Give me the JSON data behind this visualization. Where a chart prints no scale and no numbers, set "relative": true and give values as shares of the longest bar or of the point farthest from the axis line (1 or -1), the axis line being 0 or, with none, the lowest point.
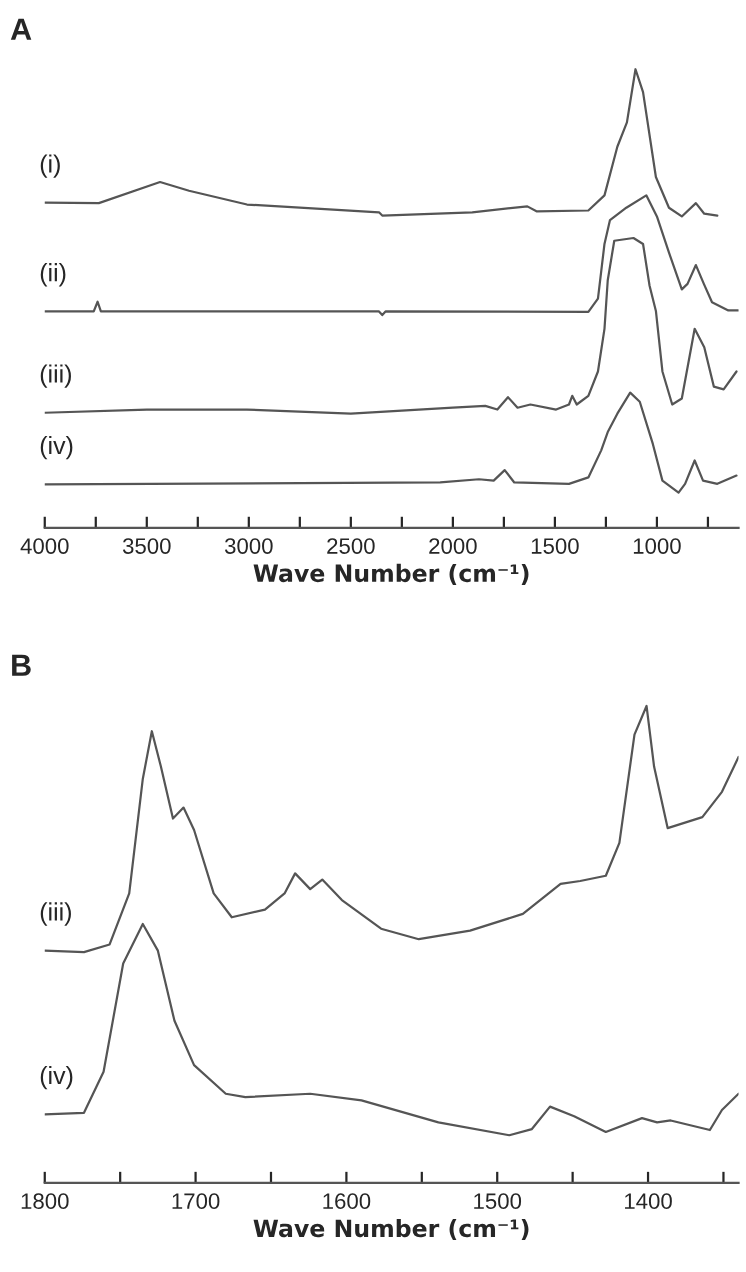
{
  "chart_data": [
    {
      "type": "line",
      "title": "A",
      "xlabel": "Wave Number (cm⁻¹)",
      "relative": true,
      "tick_labels": "x",
      "xlim": [
        4000,
        600
      ],
      "xticks": [
        4000,
        {
          "value": 3750,
          "label": null
        },
        3500,
        {
          "value": 3250,
          "label": null
        },
        3000,
        {
          "value": 2750,
          "label": null
        },
        2500,
        {
          "value": 2250,
          "label": null
        },
        2000,
        {
          "value": 1750,
          "label": null
        },
        1500,
        {
          "value": 1250,
          "label": null
        },
        1000,
        {
          "value": 750,
          "label": null
        }
      ],
      "series": [
        {
          "name": "(i)",
          "color": "#555555",
          "x": [
            4000,
            3735,
            3435,
            3293,
            3009,
            2362,
            2346,
            1905,
            1635,
            1588,
            1336,
            1257,
            1194,
            1147,
            1105,
            1068,
            1005,
            941,
            878,
            809,
            768,
            704
          ],
          "values": [
            0.709,
            0.708,
            0.754,
            0.735,
            0.705,
            0.688,
            0.681,
            0.688,
            0.701,
            0.69,
            0.692,
            0.725,
            0.831,
            0.884,
            1.0,
            0.95,
            0.765,
            0.698,
            0.679,
            0.708,
            0.685,
            0.681
          ]
        },
        {
          "name": "(ii)",
          "color": "#555555",
          "x": [
            4000,
            3760,
            3741,
            3725,
            2362,
            2346,
            2330,
            1336,
            1289,
            1257,
            1230,
            1150,
            1052,
            1000,
            940,
            878,
            850,
            809,
            770,
            730,
            650,
            600
          ],
          "values": [
            0.472,
            0.472,
            0.493,
            0.472,
            0.472,
            0.464,
            0.472,
            0.471,
            0.5,
            0.619,
            0.671,
            0.698,
            0.725,
            0.679,
            0.599,
            0.52,
            0.532,
            0.573,
            0.532,
            0.492,
            0.474,
            0.474
          ]
        },
        {
          "name": "(iii)",
          "color": "#555555",
          "x": [
            4000,
            3500,
            3009,
            2500,
            2000,
            1841,
            1782,
            1730,
            1683,
            1620,
            1494,
            1431,
            1415,
            1393,
            1336,
            1289,
            1257,
            1241,
            1209,
            1115,
            1068,
            1036,
            1005,
            973,
            925,
            878,
            815,
            768,
            721,
            673,
            610
          ],
          "values": [
            0.251,
            0.258,
            0.258,
            0.249,
            0.262,
            0.266,
            0.258,
            0.285,
            0.262,
            0.269,
            0.258,
            0.269,
            0.288,
            0.269,
            0.288,
            0.341,
            0.434,
            0.54,
            0.626,
            0.632,
            0.619,
            0.528,
            0.473,
            0.341,
            0.269,
            0.282,
            0.434,
            0.394,
            0.308,
            0.302,
            0.341
          ]
        },
        {
          "name": "(iv)",
          "color": "#555555",
          "x": [
            4000,
            2062,
            1872,
            1800,
            1746,
            1699,
            1431,
            1336,
            1273,
            1241,
            1194,
            1131,
            1084,
            1020,
            973,
            894,
            862,
            815,
            774,
            704,
            610
          ],
          "values": [
            0.095,
            0.099,
            0.106,
            0.103,
            0.126,
            0.099,
            0.096,
            0.11,
            0.169,
            0.209,
            0.249,
            0.295,
            0.275,
            0.183,
            0.103,
            0.077,
            0.096,
            0.147,
            0.103,
            0.096,
            0.114
          ]
        }
      ]
    },
    {
      "type": "line",
      "title": "B",
      "xlabel": "Wave Number (cm⁻¹)",
      "relative": true,
      "tick_labels": "x",
      "xlim": [
        1800,
        1340
      ],
      "xticks": [
        1800,
        {
          "value": 1750,
          "label": null
        },
        1700,
        {
          "value": 1650,
          "label": null
        },
        1600,
        {
          "value": 1550,
          "label": null
        },
        1500,
        {
          "value": 1450,
          "label": null
        },
        1400,
        {
          "value": 1350,
          "label": null
        }
      ],
      "series": [
        {
          "name": "(iii)",
          "color": "#555555",
          "x": [
            1800,
            1774,
            1757,
            1744,
            1735,
            1729,
            1723,
            1715,
            1708,
            1701,
            1688,
            1676,
            1654,
            1641,
            1634,
            1624,
            1616,
            1603,
            1577,
            1552,
            1518,
            1483,
            1458,
            1445,
            1428,
            1419,
            1409,
            1401,
            1396,
            1387,
            1364,
            1351,
            1340
          ],
          "values": [
            0.487,
            0.484,
            0.5,
            0.607,
            0.847,
            0.947,
            0.873,
            0.764,
            0.787,
            0.74,
            0.607,
            0.557,
            0.573,
            0.607,
            0.649,
            0.616,
            0.636,
            0.593,
            0.533,
            0.511,
            0.529,
            0.564,
            0.627,
            0.633,
            0.644,
            0.713,
            0.94,
            1.0,
            0.873,
            0.744,
            0.767,
            0.82,
            0.893
          ]
        },
        {
          "name": "(iv)",
          "color": "#555555",
          "x": [
            1800,
            1774,
            1761,
            1748,
            1735,
            1725,
            1714,
            1701,
            1680,
            1667,
            1624,
            1590,
            1539,
            1492,
            1477,
            1465,
            1449,
            1428,
            1404,
            1394,
            1385,
            1359,
            1351,
            1340
          ],
          "values": [
            0.144,
            0.147,
            0.233,
            0.46,
            0.543,
            0.487,
            0.34,
            0.247,
            0.187,
            0.18,
            0.187,
            0.173,
            0.127,
            0.1,
            0.113,
            0.16,
            0.14,
            0.107,
            0.136,
            0.127,
            0.131,
            0.111,
            0.153,
            0.187
          ]
        }
      ]
    }
  ]
}
